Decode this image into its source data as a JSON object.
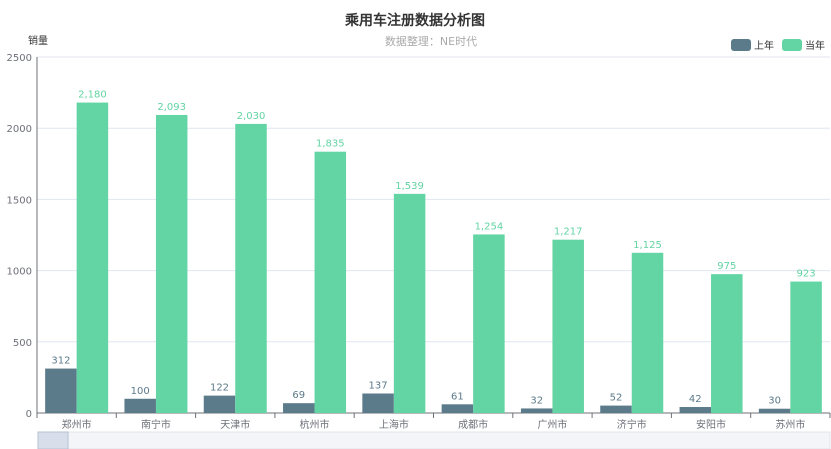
{
  "chart_data": {
    "type": "bar",
    "title": "乘用车注册数据分析图",
    "subtitle": "数据整理：NE时代",
    "ylabel": "销量",
    "xlabel": "",
    "ylim": [
      0,
      2500
    ],
    "yticks": [
      0,
      500,
      1000,
      1500,
      2000,
      2500
    ],
    "grid": true,
    "legend_position": "top-right",
    "categories": [
      "郑州市",
      "南宁市",
      "天津市",
      "杭州市",
      "上海市",
      "成都市",
      "广州市",
      "济宁市",
      "安阳市",
      "苏州市"
    ],
    "series": [
      {
        "name": "上年",
        "color": "#5b7a8a",
        "values": [
          312,
          100,
          122,
          69,
          137,
          61,
          32,
          52,
          42,
          30
        ]
      },
      {
        "name": "当年",
        "color": "#63d4a3",
        "values": [
          2180,
          2093,
          2030,
          1835,
          1539,
          1254,
          1217,
          1125,
          975,
          923
        ]
      }
    ]
  }
}
